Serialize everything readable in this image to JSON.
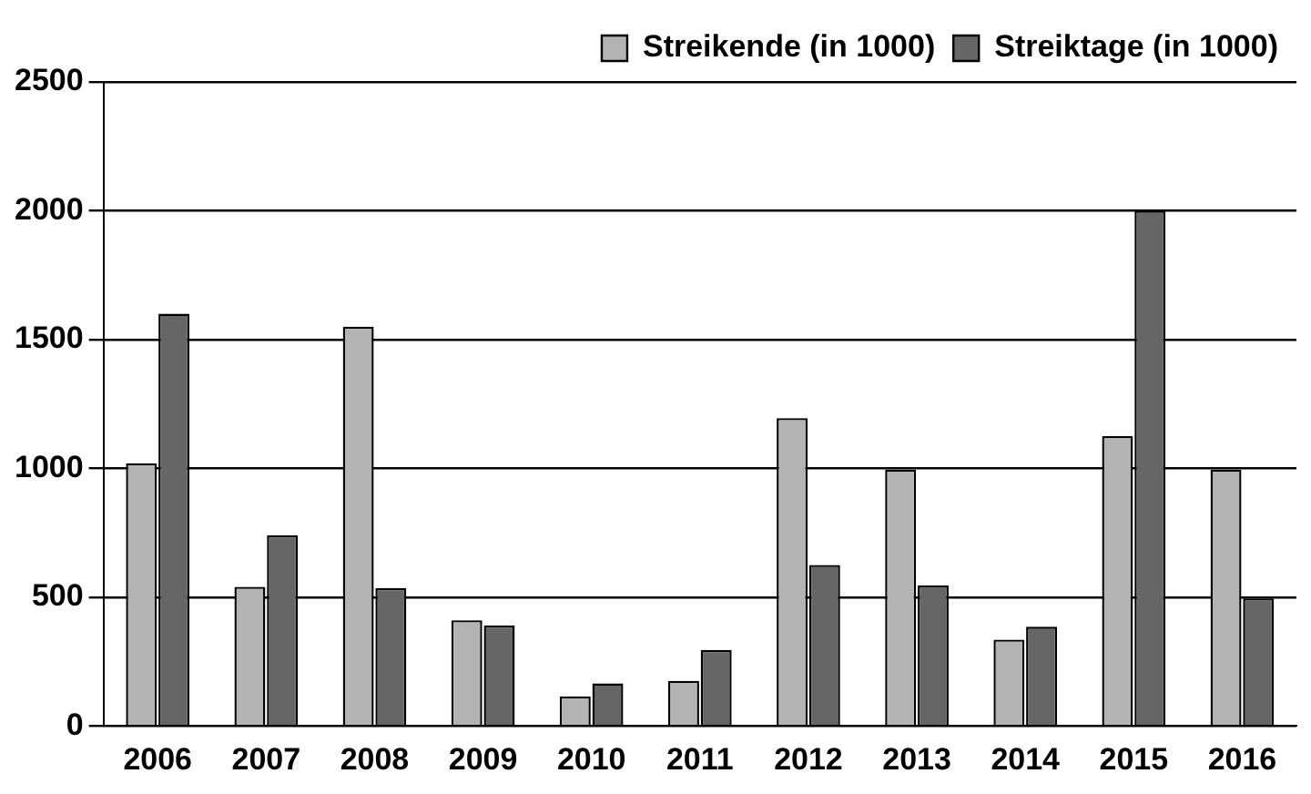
{
  "chart_data": {
    "type": "bar",
    "categories": [
      "2006",
      "2007",
      "2008",
      "2009",
      "2010",
      "2011",
      "2012",
      "2013",
      "2014",
      "2015",
      "2016"
    ],
    "series": [
      {
        "name": "Streikende (in 1000)",
        "color": "#b3b3b3",
        "values": [
          1020,
          540,
          1550,
          410,
          115,
          175,
          1195,
          995,
          335,
          1125,
          995
        ]
      },
      {
        "name": "Streiktage (in 1000)",
        "color": "#666666",
        "values": [
          1600,
          740,
          535,
          390,
          165,
          295,
          625,
          545,
          385,
          2000,
          495
        ]
      }
    ],
    "ylim": [
      0,
      2500
    ],
    "yticks": [
      0,
      500,
      1000,
      1500,
      2000,
      2500
    ],
    "grid": "y",
    "legend": "top right"
  }
}
